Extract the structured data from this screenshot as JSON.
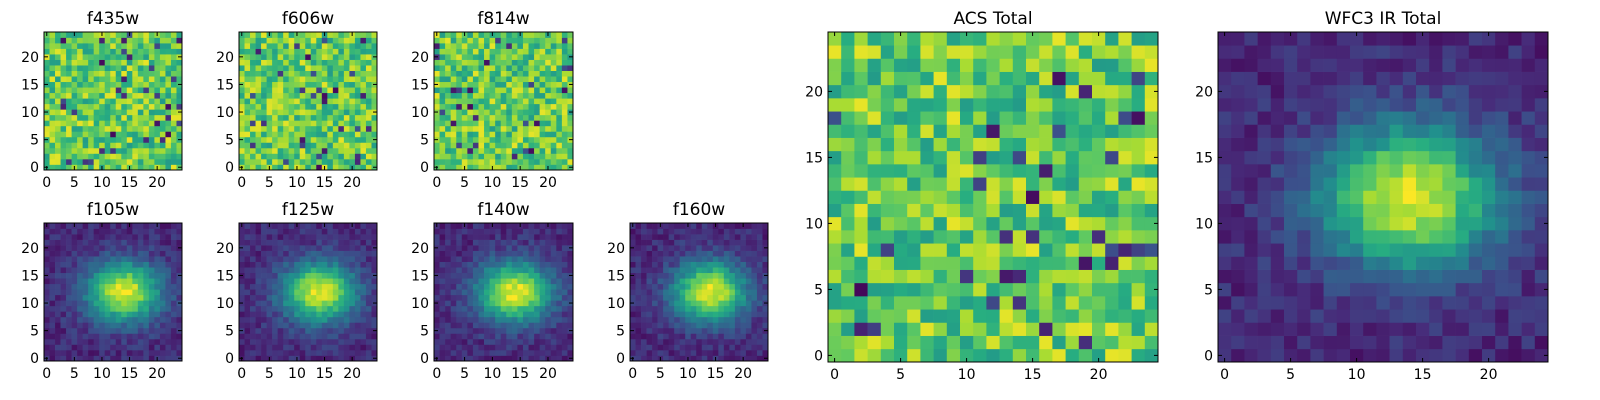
{
  "chart_data": [
    {
      "type": "heatmap",
      "title": "f435w",
      "xticks": [
        "0",
        "5",
        "10",
        "15",
        "20"
      ],
      "yticks": [
        "0",
        "5",
        "10",
        "15",
        "20"
      ],
      "xlim": [
        0,
        25
      ],
      "ylim": [
        0,
        25
      ],
      "colormap": "viridis",
      "pattern": "noise"
    },
    {
      "type": "heatmap",
      "title": "f606w",
      "xticks": [
        "0",
        "5",
        "10",
        "15",
        "20"
      ],
      "yticks": [
        "0",
        "5",
        "10",
        "15",
        "20"
      ],
      "xlim": [
        0,
        25
      ],
      "ylim": [
        0,
        25
      ],
      "colormap": "viridis",
      "pattern": "noise"
    },
    {
      "type": "heatmap",
      "title": "f814w",
      "xticks": [
        "0",
        "5",
        "10",
        "15",
        "20"
      ],
      "yticks": [
        "0",
        "5",
        "10",
        "15",
        "20"
      ],
      "xlim": [
        0,
        25
      ],
      "ylim": [
        0,
        25
      ],
      "colormap": "viridis",
      "pattern": "noise"
    },
    {
      "type": "heatmap",
      "title": "f105w",
      "xticks": [
        "0",
        "5",
        "10",
        "15",
        "20"
      ],
      "yticks": [
        "0",
        "5",
        "10",
        "15",
        "20"
      ],
      "xlim": [
        0,
        25
      ],
      "ylim": [
        0,
        25
      ],
      "colormap": "viridis",
      "pattern": "blob",
      "peak": [
        14,
        12
      ]
    },
    {
      "type": "heatmap",
      "title": "f125w",
      "xticks": [
        "0",
        "5",
        "10",
        "15",
        "20"
      ],
      "yticks": [
        "0",
        "5",
        "10",
        "15",
        "20"
      ],
      "xlim": [
        0,
        25
      ],
      "ylim": [
        0,
        25
      ],
      "colormap": "viridis",
      "pattern": "blob",
      "peak": [
        14,
        12
      ]
    },
    {
      "type": "heatmap",
      "title": "f140w",
      "xticks": [
        "0",
        "5",
        "10",
        "15",
        "20"
      ],
      "yticks": [
        "0",
        "5",
        "10",
        "15",
        "20"
      ],
      "xlim": [
        0,
        25
      ],
      "ylim": [
        0,
        25
      ],
      "colormap": "viridis",
      "pattern": "blob",
      "peak": [
        14,
        12
      ]
    },
    {
      "type": "heatmap",
      "title": "f160w",
      "xticks": [
        "0",
        "5",
        "10",
        "15",
        "20"
      ],
      "yticks": [
        "0",
        "5",
        "10",
        "15",
        "20"
      ],
      "xlim": [
        0,
        25
      ],
      "ylim": [
        0,
        25
      ],
      "colormap": "viridis",
      "pattern": "blob",
      "peak": [
        14,
        12
      ]
    },
    {
      "type": "heatmap",
      "title": "ACS Total",
      "xticks": [
        "0",
        "5",
        "10",
        "15",
        "20"
      ],
      "yticks": [
        "0",
        "5",
        "10",
        "15",
        "20"
      ],
      "xlim": [
        0,
        25
      ],
      "ylim": [
        0,
        25
      ],
      "colormap": "viridis",
      "pattern": "noise"
    },
    {
      "type": "heatmap",
      "title": "WFC3 IR Total",
      "xticks": [
        "0",
        "5",
        "10",
        "15",
        "20"
      ],
      "yticks": [
        "0",
        "5",
        "10",
        "15",
        "20"
      ],
      "xlim": [
        0,
        25
      ],
      "ylim": [
        0,
        25
      ],
      "colormap": "viridis",
      "pattern": "blob",
      "peak": [
        14,
        12
      ]
    }
  ]
}
